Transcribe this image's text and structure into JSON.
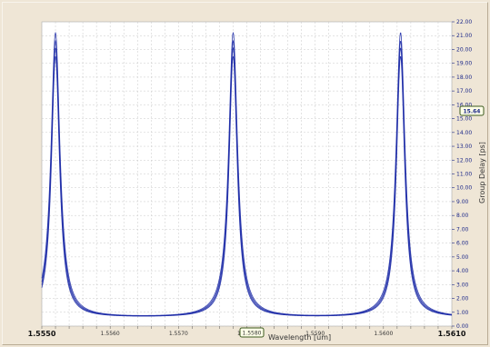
{
  "chart_data": {
    "type": "line",
    "title": "",
    "xlabel": "Wavelength [um]",
    "ylabel": "Group Delay [ps]",
    "xlim": [
      1.555,
      1.561
    ],
    "ylim": [
      0,
      22
    ],
    "x_ticks": [
      "1.5560",
      "1.5570",
      "1.5580",
      "1.5590",
      "1.5600"
    ],
    "x_tick_end_labels": [
      "1.5550",
      "1.5610"
    ],
    "y_ticks": [
      "22.00",
      "21.00",
      "20.00",
      "19.00",
      "18.00",
      "17.00",
      "16.00",
      "15.00",
      "14.00",
      "13.00",
      "12.00",
      "11.00",
      "10.00",
      "9.00",
      "8.00",
      "7.00",
      "6.00",
      "5.00",
      "4.00",
      "3.00",
      "2.00",
      "1.00",
      "0.00"
    ],
    "cursor_x_label": "1.5580",
    "cursor_y_label": "15.64",
    "grid": true,
    "legend": "none",
    "line_color": "#1c2aa6",
    "series": [
      {
        "peak_centers": [
          1.5552,
          1.5578,
          1.56025
        ],
        "peak_value": 21.2,
        "baseline": 0.6
      },
      {
        "peak_centers": [
          1.5552,
          1.5578,
          1.56025
        ],
        "peak_value": 20.6,
        "baseline": 0.6
      },
      {
        "peak_centers": [
          1.5552,
          1.5578,
          1.56025
        ],
        "peak_value": 20.1,
        "baseline": 0.6
      },
      {
        "peak_centers": [
          1.5552,
          1.5578,
          1.56025
        ],
        "peak_value": 19.5,
        "baseline": 0.6
      }
    ]
  }
}
